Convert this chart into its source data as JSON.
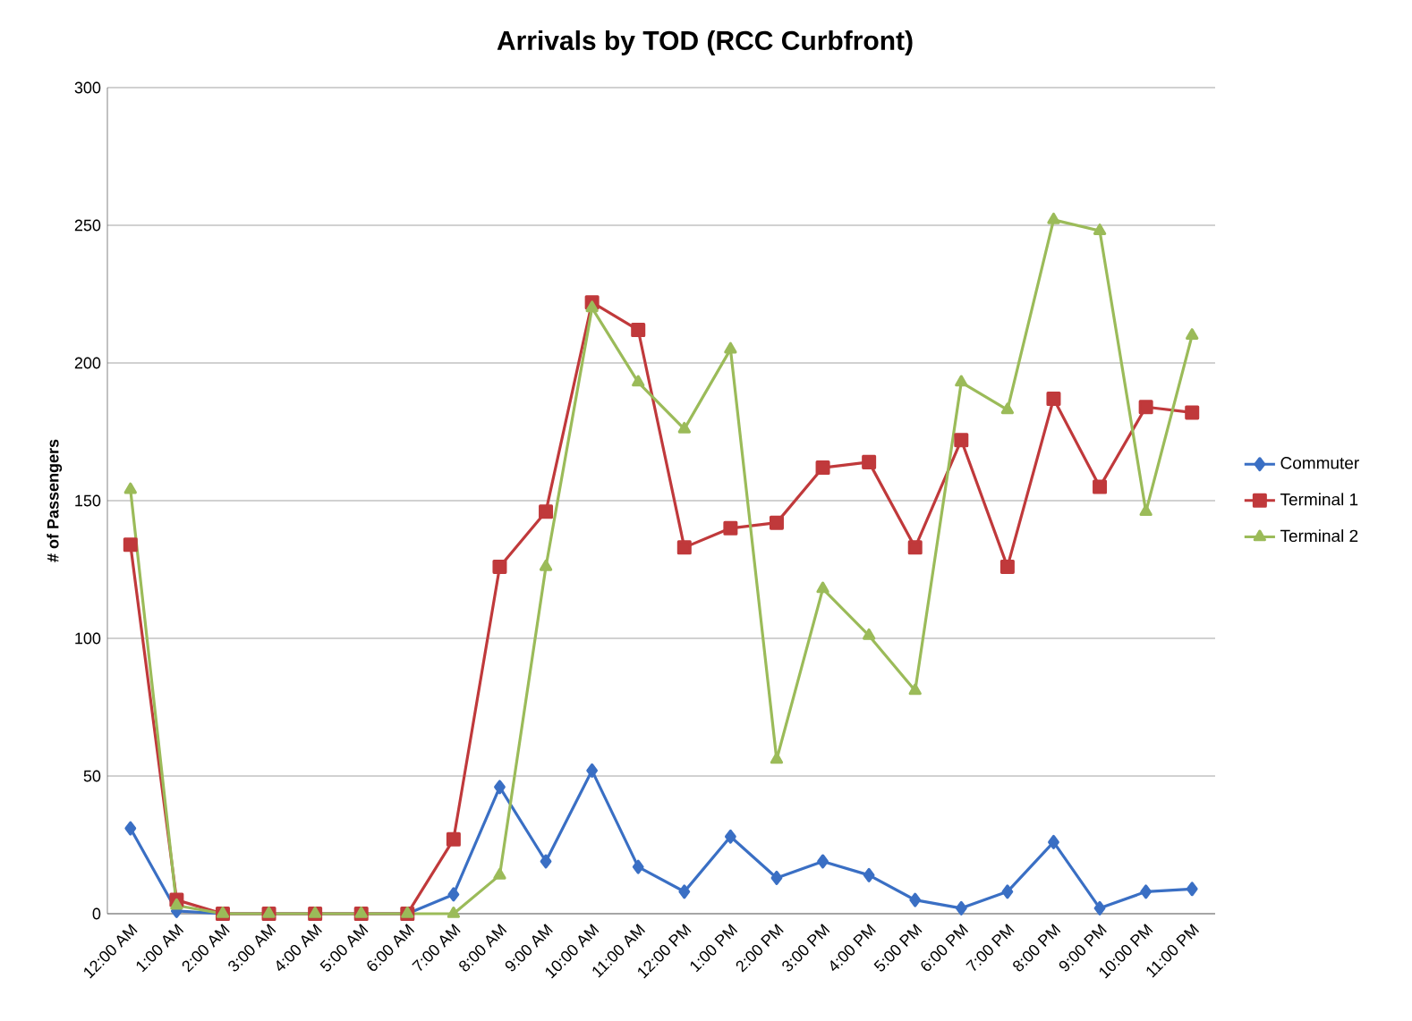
{
  "chart_data": {
    "type": "line",
    "title": "Arrivals by TOD (RCC Curbfront)",
    "ylabel": "# of Passengers",
    "categories": [
      "12:00 AM",
      "1:00 AM",
      "2:00 AM",
      "3:00 AM",
      "4:00 AM",
      "5:00 AM",
      "6:00 AM",
      "7:00 AM",
      "8:00 AM",
      "9:00 AM",
      "10:00 AM",
      "11:00 AM",
      "12:00 PM",
      "1:00 PM",
      "2:00 PM",
      "3:00 PM",
      "4:00 PM",
      "5:00 PM",
      "6:00 PM",
      "7:00 PM",
      "8:00 PM",
      "9:00 PM",
      "10:00 PM",
      "11:00 PM"
    ],
    "series": [
      {
        "name": "Commuter",
        "color": "#3a6fc4",
        "marker": "diamond",
        "values": [
          31,
          1,
          0,
          0,
          0,
          0,
          0,
          7,
          46,
          19,
          52,
          17,
          8,
          28,
          13,
          19,
          14,
          5,
          2,
          8,
          26,
          2,
          8,
          9
        ]
      },
      {
        "name": "Terminal 1",
        "color": "#c0393b",
        "marker": "square",
        "values": [
          134,
          5,
          0,
          0,
          0,
          0,
          0,
          27,
          126,
          146,
          222,
          212,
          133,
          140,
          142,
          162,
          164,
          133,
          172,
          126,
          187,
          155,
          184,
          182
        ]
      },
      {
        "name": "Terminal 2",
        "color": "#9bbb59",
        "marker": "triangle",
        "values": [
          154,
          3,
          0,
          0,
          0,
          0,
          0,
          0,
          14,
          126,
          220,
          193,
          176,
          205,
          56,
          118,
          101,
          81,
          193,
          183,
          252,
          248,
          146,
          210
        ]
      }
    ],
    "ylim": [
      0,
      300
    ],
    "yticks": [
      0,
      50,
      100,
      150,
      200,
      250,
      300
    ],
    "grid": "y",
    "legend": "right",
    "line_style": "solid"
  }
}
